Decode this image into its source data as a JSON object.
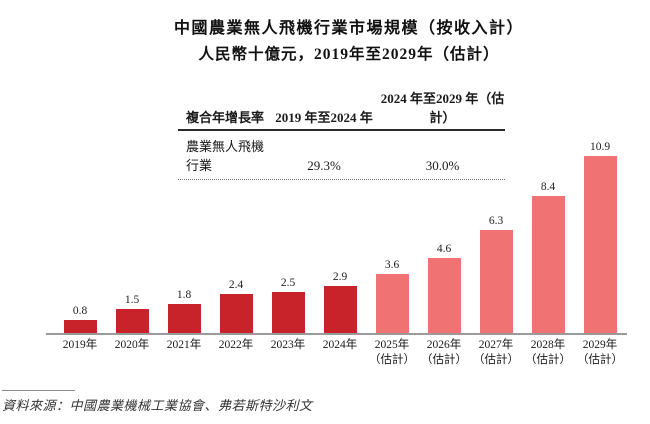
{
  "title": {
    "line1": "中國農業無人飛機行業市場規模（按收入計）",
    "line2": "人民幣十億元，2019年至2029年（估計）"
  },
  "cagr_table": {
    "headers": [
      "複合年增長率",
      "2019 年至2024 年",
      "2024 年至2029 年（估計）"
    ],
    "row": {
      "label": "農業無人飛機行業",
      "cagr_2019_2024": "29.3%",
      "cagr_2024_2029": "30.0%"
    }
  },
  "chart_data": {
    "type": "bar",
    "title": "中國農業無人飛機行業市場規模（按收入計）",
    "subtitle": "人民幣十億元，2019年至2029年（估計）",
    "unit": "人民幣十億元",
    "categories": [
      "2019年",
      "2020年",
      "2021年",
      "2022年",
      "2023年",
      "2024年",
      "2025年（估計）",
      "2026年（估計）",
      "2027年（估計）",
      "2028年（估計）",
      "2029年（估計）"
    ],
    "values": [
      0.8,
      1.5,
      1.8,
      2.4,
      2.5,
      2.9,
      3.6,
      4.6,
      6.3,
      8.4,
      10.9
    ],
    "data_labels": [
      "0.8",
      "1.5",
      "1.8",
      "2.4",
      "2.5",
      "2.9",
      "3.6",
      "4.6",
      "6.3",
      "8.4",
      "10.9"
    ],
    "xlabels": [
      {
        "line1": "2019年",
        "line2": ""
      },
      {
        "line1": "2020年",
        "line2": ""
      },
      {
        "line1": "2021年",
        "line2": ""
      },
      {
        "line1": "2022年",
        "line2": ""
      },
      {
        "line1": "2023年",
        "line2": ""
      },
      {
        "line1": "2024年",
        "line2": ""
      },
      {
        "line1": "2025年",
        "line2": "（估計）"
      },
      {
        "line1": "2026年",
        "line2": "（估計）"
      },
      {
        "line1": "2027年",
        "line2": "（估計）"
      },
      {
        "line1": "2028年",
        "line2": "（估計）"
      },
      {
        "line1": "2029年",
        "line2": "（估計）"
      }
    ],
    "estimate_start_index": 6,
    "ylim": [
      0,
      11.8
    ],
    "grid": false,
    "legend": "none"
  },
  "source": "資料來源：中國農業機械工業協會、弗若斯特沙利文",
  "colors": {
    "bar_actual": "#C8222A",
    "bar_estimate": "#F07272",
    "axis": "#9A9A9A"
  }
}
